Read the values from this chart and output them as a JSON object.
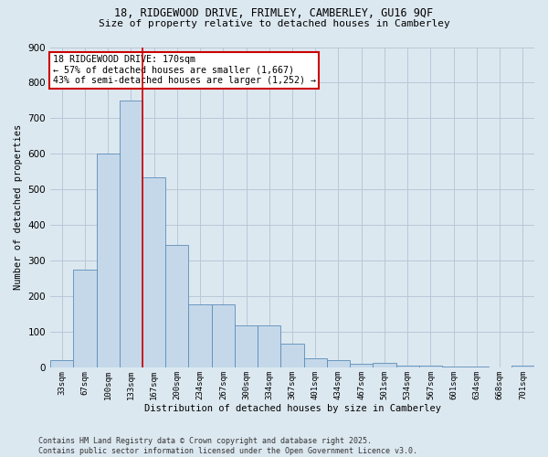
{
  "title1": "18, RIDGEWOOD DRIVE, FRIMLEY, CAMBERLEY, GU16 9QF",
  "title2": "Size of property relative to detached houses in Camberley",
  "xlabel": "Distribution of detached houses by size in Camberley",
  "ylabel": "Number of detached properties",
  "bar_values": [
    20,
    275,
    600,
    750,
    535,
    345,
    178,
    178,
    118,
    118,
    67,
    25,
    20,
    10,
    12,
    5,
    5,
    3,
    2,
    0,
    4
  ],
  "categories": [
    "33sqm",
    "67sqm",
    "100sqm",
    "133sqm",
    "167sqm",
    "200sqm",
    "234sqm",
    "267sqm",
    "300sqm",
    "334sqm",
    "367sqm",
    "401sqm",
    "434sqm",
    "467sqm",
    "501sqm",
    "534sqm",
    "567sqm",
    "601sqm",
    "634sqm",
    "668sqm",
    "701sqm"
  ],
  "bar_color": "#c5d8ea",
  "bar_edge_color": "#5b8db8",
  "grid_color": "#b8c8d8",
  "background_color": "#dce8f0",
  "vline_x": 3.5,
  "vline_color": "#cc0000",
  "annotation_text": "18 RIDGEWOOD DRIVE: 170sqm\n← 57% of detached houses are smaller (1,667)\n43% of semi-detached houses are larger (1,252) →",
  "annotation_box_facecolor": "#ffffff",
  "annotation_box_edge": "#cc0000",
  "ylim": [
    0,
    900
  ],
  "yticks": [
    0,
    100,
    200,
    300,
    400,
    500,
    600,
    700,
    800,
    900
  ],
  "footnote": "Contains HM Land Registry data © Crown copyright and database right 2025.\nContains public sector information licensed under the Open Government Licence v3.0."
}
